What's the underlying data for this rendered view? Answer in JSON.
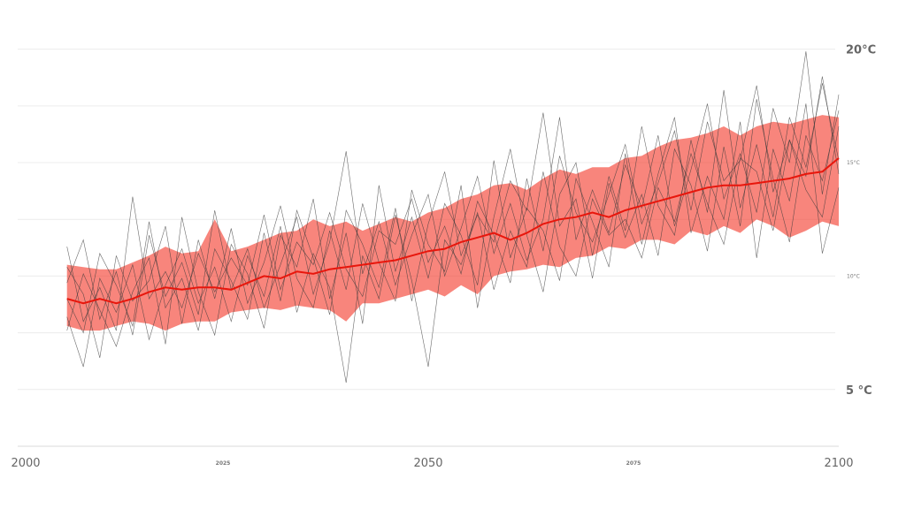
{
  "chart_data": {
    "type": "line",
    "title": "",
    "xlabel": "",
    "ylabel": "",
    "xlim": [
      2000,
      2100
    ],
    "ylim": [
      2.5,
      21
    ],
    "x_ticks": [
      {
        "value": 2000,
        "label": "2000",
        "size": "large"
      },
      {
        "value": 2025,
        "label": "2025",
        "size": "small"
      },
      {
        "value": 2050,
        "label": "2050",
        "size": "large"
      },
      {
        "value": 2075,
        "label": "2075",
        "size": "small"
      },
      {
        "value": 2100,
        "label": "2100",
        "size": "large"
      }
    ],
    "y_ticks": [
      {
        "value": 20,
        "label": "20°C",
        "size": "large"
      },
      {
        "value": 15,
        "label": "15°C",
        "size": "small"
      },
      {
        "value": 10,
        "label": "10°C",
        "size": "small"
      },
      {
        "value": 5,
        "label": "5 °C",
        "size": "large"
      }
    ],
    "grid_values": [
      5,
      7.5,
      10,
      12.5,
      15,
      17.5,
      20
    ],
    "grid": true,
    "legend": "none",
    "colors": {
      "band": "#f44336",
      "band_opacity": 0.65,
      "mean": "#e8160c",
      "members": "#3a3a3a",
      "grid": "#ececec",
      "axis_text": "#666666"
    },
    "series": [
      {
        "role": "ensemble-mean",
        "x": [
          2006,
          2008,
          2010,
          2012,
          2014,
          2016,
          2018,
          2020,
          2022,
          2024,
          2026,
          2028,
          2030,
          2032,
          2034,
          2036,
          2038,
          2040,
          2042,
          2044,
          2046,
          2048,
          2050,
          2052,
          2054,
          2056,
          2058,
          2060,
          2062,
          2064,
          2066,
          2068,
          2070,
          2072,
          2074,
          2076,
          2078,
          2080,
          2082,
          2084,
          2086,
          2088,
          2090,
          2092,
          2094,
          2096,
          2098,
          2100
        ],
        "y": [
          9.0,
          8.8,
          9.0,
          8.8,
          9.0,
          9.3,
          9.5,
          9.4,
          9.5,
          9.5,
          9.4,
          9.7,
          10.0,
          9.9,
          10.2,
          10.1,
          10.3,
          10.4,
          10.5,
          10.6,
          10.7,
          10.9,
          11.1,
          11.2,
          11.5,
          11.7,
          11.9,
          11.6,
          11.9,
          12.3,
          12.5,
          12.6,
          12.8,
          12.6,
          12.9,
          13.1,
          13.3,
          13.5,
          13.7,
          13.9,
          14.0,
          14.0,
          14.1,
          14.2,
          14.3,
          14.5,
          14.6,
          15.2
        ]
      },
      {
        "role": "band-upper",
        "x": [
          2006,
          2008,
          2010,
          2012,
          2014,
          2016,
          2018,
          2020,
          2022,
          2024,
          2026,
          2028,
          2030,
          2032,
          2034,
          2036,
          2038,
          2040,
          2042,
          2044,
          2046,
          2048,
          2050,
          2052,
          2054,
          2056,
          2058,
          2060,
          2062,
          2064,
          2066,
          2068,
          2070,
          2072,
          2074,
          2076,
          2078,
          2080,
          2082,
          2084,
          2086,
          2088,
          2090,
          2092,
          2094,
          2096,
          2098,
          2100
        ],
        "y": [
          10.5,
          10.4,
          10.3,
          10.3,
          10.6,
          10.9,
          11.3,
          11.0,
          11.1,
          12.5,
          11.1,
          11.3,
          11.6,
          11.9,
          12.0,
          12.5,
          12.2,
          12.4,
          12.0,
          12.3,
          12.6,
          12.4,
          12.8,
          13.0,
          13.4,
          13.6,
          14.0,
          14.1,
          13.8,
          14.3,
          14.7,
          14.5,
          14.8,
          14.8,
          15.2,
          15.3,
          15.7,
          16.0,
          16.1,
          16.3,
          16.6,
          16.2,
          16.6,
          16.8,
          16.7,
          16.9,
          17.1,
          17.0
        ]
      },
      {
        "role": "band-lower",
        "x": [
          2006,
          2008,
          2010,
          2012,
          2014,
          2016,
          2018,
          2020,
          2022,
          2024,
          2026,
          2028,
          2030,
          2032,
          2034,
          2036,
          2038,
          2040,
          2042,
          2044,
          2046,
          2048,
          2050,
          2052,
          2054,
          2056,
          2058,
          2060,
          2062,
          2064,
          2066,
          2068,
          2070,
          2072,
          2074,
          2076,
          2078,
          2080,
          2082,
          2084,
          2086,
          2088,
          2090,
          2092,
          2094,
          2096,
          2098,
          2100
        ],
        "y": [
          7.8,
          7.6,
          7.6,
          7.8,
          8.0,
          7.9,
          7.6,
          7.9,
          8.0,
          8.0,
          8.4,
          8.5,
          8.6,
          8.5,
          8.7,
          8.6,
          8.5,
          8.0,
          8.8,
          8.8,
          9.0,
          9.2,
          9.4,
          9.1,
          9.6,
          9.2,
          10.0,
          10.2,
          10.3,
          10.5,
          10.4,
          10.8,
          10.9,
          11.3,
          11.2,
          11.6,
          11.6,
          11.4,
          12.0,
          11.8,
          12.2,
          11.9,
          12.5,
          12.2,
          11.7,
          12.0,
          12.4,
          12.2
        ]
      }
    ],
    "ensemble_members": [
      {
        "x": [
          2006,
          2008,
          2010,
          2012,
          2014,
          2016,
          2018,
          2020,
          2022,
          2024,
          2026,
          2028,
          2030,
          2032,
          2034,
          2036,
          2038,
          2040,
          2042,
          2044,
          2046,
          2048,
          2050,
          2052,
          2054,
          2056,
          2058,
          2060,
          2062,
          2064,
          2066,
          2068,
          2070,
          2072,
          2074,
          2076,
          2078,
          2080,
          2082,
          2084,
          2086,
          2088,
          2090,
          2092,
          2094,
          2096,
          2098,
          2100
        ],
        "y": [
          11.3,
          8.0,
          9.5,
          7.6,
          13.5,
          9.0,
          10.2,
          8.6,
          11.0,
          9.3,
          10.8,
          9.6,
          12.7,
          9.4,
          11.5,
          10.5,
          12.8,
          10.3,
          9.1,
          12.0,
          11.4,
          13.4,
          10.6,
          12.2,
          10.1,
          13.3,
          11.8,
          9.7,
          14.3,
          11.1,
          15.3,
          12.8,
          11.5,
          13.6,
          15.8,
          12.3,
          14.1,
          16.4,
          12.9,
          16.8,
          14.2,
          15.1,
          18.4,
          13.7,
          16.0,
          14.4,
          18.8,
          14.5
        ]
      },
      {
        "x": [
          2006,
          2008,
          2010,
          2012,
          2014,
          2016,
          2018,
          2020,
          2022,
          2024,
          2026,
          2028,
          2030,
          2032,
          2034,
          2036,
          2038,
          2040,
          2042,
          2044,
          2046,
          2048,
          2050,
          2052,
          2054,
          2056,
          2058,
          2060,
          2062,
          2064,
          2066,
          2068,
          2070,
          2072,
          2074,
          2076,
          2078,
          2080,
          2082,
          2084,
          2086,
          2088,
          2090,
          2092,
          2094,
          2096,
          2098,
          2100
        ],
        "y": [
          9.7,
          11.6,
          8.1,
          10.2,
          7.4,
          11.8,
          9.1,
          10.6,
          8.3,
          12.9,
          9.4,
          11.2,
          8.6,
          10.5,
          12.6,
          9.2,
          11.5,
          15.5,
          10.1,
          12.4,
          9.6,
          11.8,
          13.6,
          10.0,
          12.1,
          14.4,
          11.0,
          13.2,
          10.7,
          12.5,
          17.0,
          11.6,
          13.8,
          11.9,
          14.9,
          13.0,
          16.2,
          12.2,
          14.7,
          17.6,
          13.4,
          15.4,
          12.8,
          17.4,
          15.0,
          19.9,
          13.6,
          18.0
        ]
      },
      {
        "x": [
          2006,
          2008,
          2010,
          2012,
          2014,
          2016,
          2018,
          2020,
          2022,
          2024,
          2026,
          2028,
          2030,
          2032,
          2034,
          2036,
          2038,
          2040,
          2042,
          2044,
          2046,
          2048,
          2050,
          2052,
          2054,
          2056,
          2058,
          2060,
          2062,
          2064,
          2066,
          2068,
          2070,
          2072,
          2074,
          2076,
          2078,
          2080,
          2082,
          2084,
          2086,
          2088,
          2090,
          2092,
          2094,
          2096,
          2098,
          2100
        ],
        "y": [
          8.2,
          6.0,
          9.9,
          8.4,
          10.5,
          7.2,
          9.6,
          11.2,
          8.8,
          10.4,
          8.0,
          10.9,
          9.1,
          12.2,
          8.4,
          11.0,
          9.5,
          5.3,
          10.9,
          9.0,
          12.7,
          9.8,
          6.0,
          11.6,
          10.5,
          12.8,
          9.4,
          12.0,
          10.4,
          14.6,
          11.3,
          10.0,
          13.4,
          11.8,
          12.5,
          10.8,
          13.9,
          12.4,
          15.4,
          13.2,
          11.4,
          15.2,
          14.6,
          12.0,
          16.0,
          13.8,
          12.6,
          16.6
        ]
      },
      {
        "x": [
          2006,
          2008,
          2010,
          2012,
          2014,
          2016,
          2018,
          2020,
          2022,
          2024,
          2026,
          2028,
          2030,
          2032,
          2034,
          2036,
          2038,
          2040,
          2042,
          2044,
          2046,
          2048,
          2050,
          2052,
          2054,
          2056,
          2058,
          2060,
          2062,
          2064,
          2066,
          2068,
          2070,
          2072,
          2074,
          2076,
          2078,
          2080,
          2082,
          2084,
          2086,
          2088,
          2090,
          2092,
          2094,
          2096,
          2098,
          2100
        ],
        "y": [
          10.4,
          9.2,
          6.4,
          10.9,
          8.9,
          9.8,
          12.2,
          7.9,
          11.6,
          9.0,
          12.1,
          8.8,
          10.6,
          13.1,
          9.9,
          8.6,
          12.0,
          9.4,
          13.2,
          10.6,
          8.9,
          13.8,
          11.4,
          10.2,
          14.0,
          8.6,
          12.6,
          15.6,
          11.8,
          9.3,
          13.6,
          15.0,
          10.9,
          14.4,
          12.0,
          16.6,
          13.1,
          11.8,
          16.0,
          12.8,
          18.2,
          13.0,
          15.8,
          12.6,
          17.0,
          14.8,
          18.5,
          15.1
        ]
      },
      {
        "x": [
          2006,
          2008,
          2010,
          2012,
          2014,
          2016,
          2018,
          2020,
          2022,
          2024,
          2026,
          2028,
          2030,
          2032,
          2034,
          2036,
          2038,
          2040,
          2042,
          2044,
          2046,
          2048,
          2050,
          2052,
          2054,
          2056,
          2058,
          2060,
          2062,
          2064,
          2066,
          2068,
          2070,
          2072,
          2074,
          2076,
          2078,
          2080,
          2082,
          2084,
          2086,
          2088,
          2090,
          2092,
          2094,
          2096,
          2098,
          2100
        ],
        "y": [
          7.6,
          10.1,
          8.5,
          6.9,
          9.3,
          10.8,
          7.0,
          12.6,
          9.3,
          7.4,
          11.4,
          10.1,
          7.7,
          11.8,
          10.4,
          13.4,
          9.0,
          11.9,
          7.9,
          14.0,
          10.2,
          12.6,
          9.9,
          13.2,
          11.8,
          9.6,
          15.1,
          10.8,
          13.0,
          12.0,
          9.8,
          14.3,
          12.4,
          10.4,
          15.4,
          11.4,
          14.5,
          17.0,
          11.9,
          14.4,
          12.5,
          16.8,
          10.8,
          15.6,
          13.3,
          17.6,
          11.0,
          13.9
        ]
      },
      {
        "x": [
          2006,
          2008,
          2010,
          2012,
          2014,
          2016,
          2018,
          2020,
          2022,
          2024,
          2026,
          2028,
          2030,
          2032,
          2034,
          2036,
          2038,
          2040,
          2042,
          2044,
          2046,
          2048,
          2050,
          2052,
          2054,
          2056,
          2058,
          2060,
          2062,
          2064,
          2066,
          2068,
          2070,
          2072,
          2074,
          2076,
          2078,
          2080,
          2082,
          2084,
          2086,
          2088,
          2090,
          2092,
          2094,
          2096,
          2098,
          2100
        ],
        "y": [
          9.0,
          7.5,
          11.0,
          9.6,
          7.8,
          12.4,
          8.6,
          9.9,
          7.6,
          11.2,
          9.8,
          8.1,
          11.9,
          8.9,
          12.9,
          10.8,
          8.3,
          12.9,
          11.4,
          9.5,
          13.0,
          8.9,
          12.3,
          14.6,
          10.9,
          12.7,
          11.5,
          14.2,
          12.9,
          17.2,
          12.2,
          13.4,
          9.9,
          14.1,
          11.7,
          13.6,
          10.9,
          15.6,
          14.0,
          11.1,
          15.7,
          12.2,
          17.8,
          14.3,
          11.5,
          16.2,
          14.2,
          17.3
        ]
      }
    ]
  }
}
